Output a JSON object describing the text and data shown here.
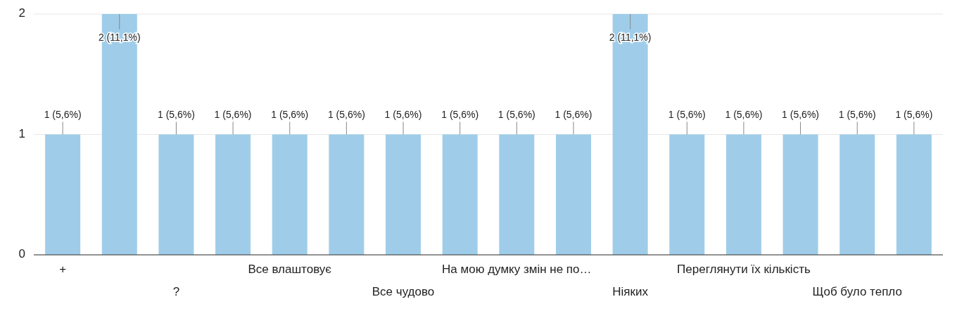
{
  "chart_data": {
    "type": "bar",
    "categories": [
      "+",
      null,
      "?",
      null,
      "Все влаштовує",
      null,
      "Все чудово",
      null,
      "На мою думку змін не по…",
      null,
      "Ніяких",
      null,
      "Переглянути їх кількість",
      null,
      "Щоб було тепло",
      null
    ],
    "values": [
      1,
      2,
      1,
      1,
      1,
      1,
      1,
      1,
      1,
      1,
      2,
      1,
      1,
      1,
      1,
      1
    ],
    "value_labels": [
      "1 (5,6%)",
      "2 (11,1%)",
      "1 (5,6%)",
      "1 (5,6%)",
      "1 (5,6%)",
      "1 (5,6%)",
      "1 (5,6%)",
      "1 (5,6%)",
      "1 (5,6%)",
      "1 (5,6%)",
      "2 (11,1%)",
      "1 (5,6%)",
      "1 (5,6%)",
      "1 (5,6%)",
      "1 (5,6%)",
      "1 (5,6%)"
    ],
    "color": "#9fcde9",
    "ylim": [
      0,
      2
    ],
    "yticks": [
      0,
      1,
      2
    ],
    "grid": "y"
  }
}
